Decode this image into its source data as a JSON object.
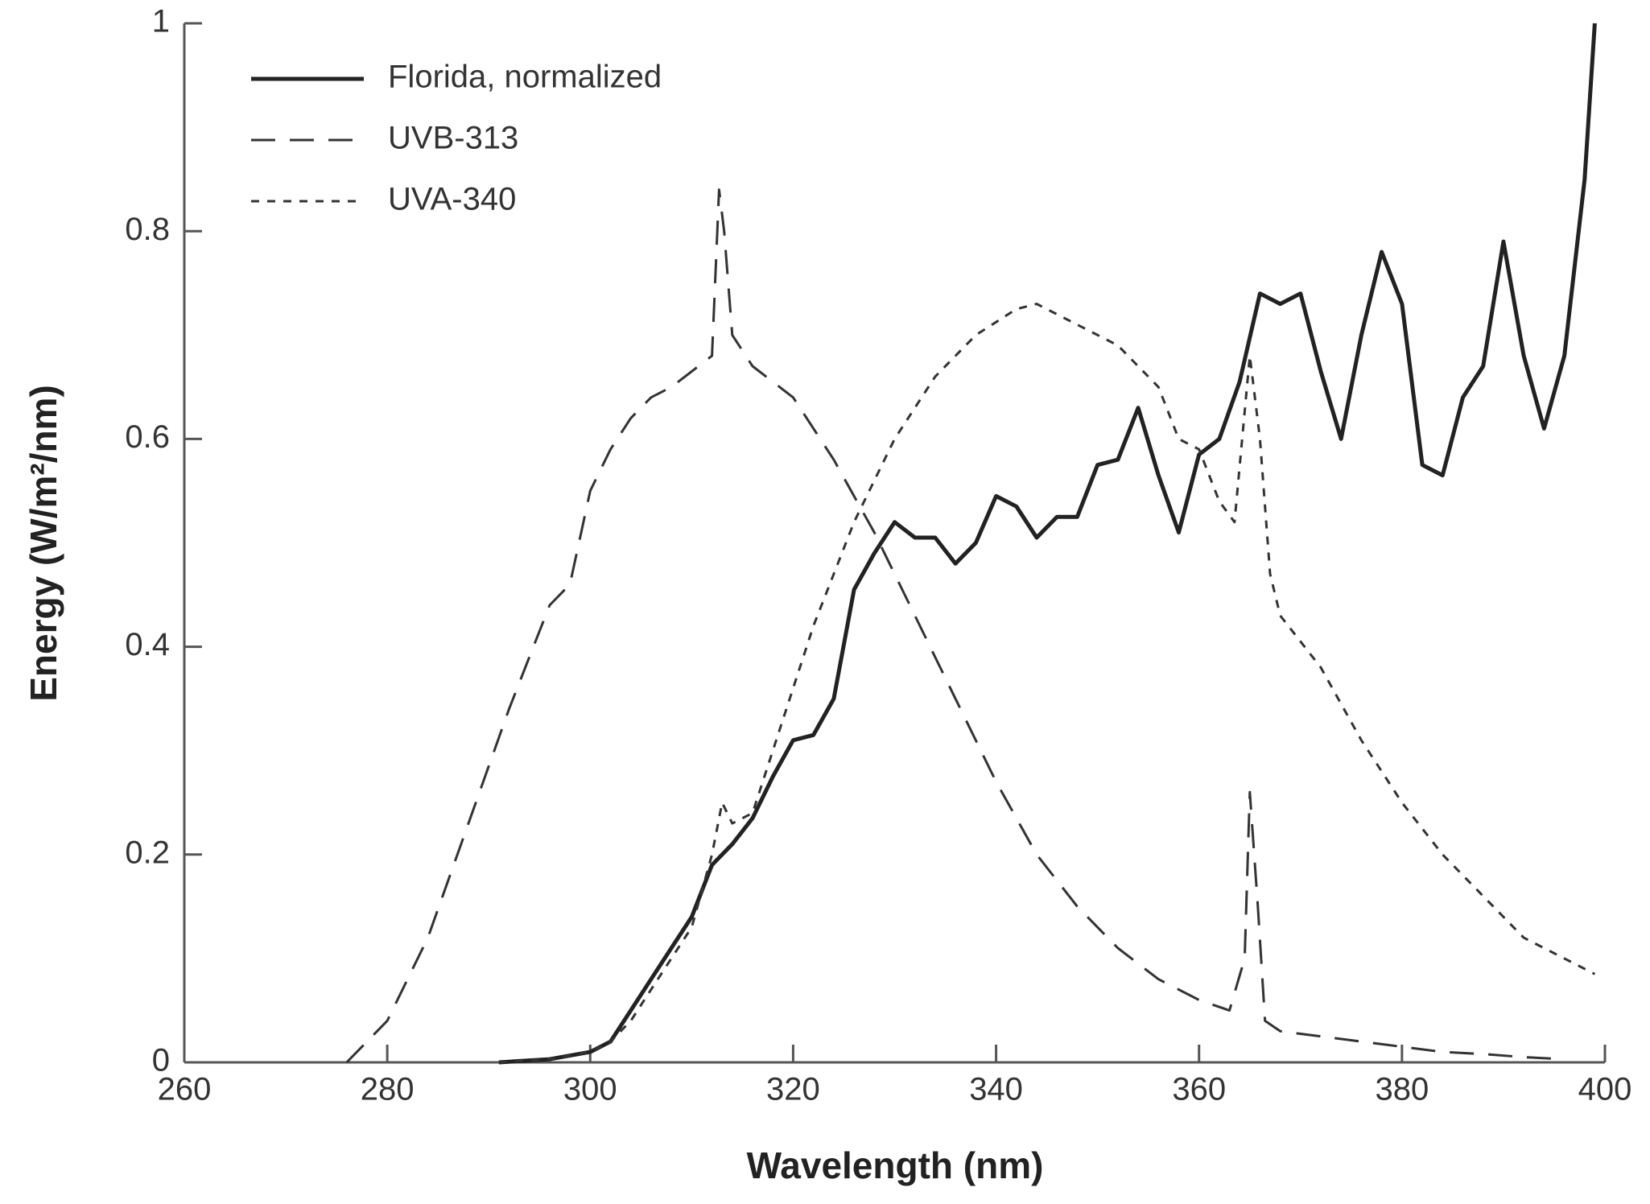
{
  "chart_data": {
    "type": "line",
    "x_label": "Wavelength (nm)",
    "y_label": "Energy (W/m²/nm)",
    "xlim": [
      260,
      400
    ],
    "xticks": [
      260,
      280,
      300,
      320,
      340,
      360,
      380,
      400
    ],
    "ylim": [
      0,
      1
    ],
    "yticks": [
      0,
      0.2,
      0.4,
      0.6,
      0.8,
      1
    ],
    "legend": "upper left",
    "series": [
      {
        "name": "Florida, normalized",
        "color": "#222222",
        "dash": "solid",
        "x": [
          291,
          296,
          300,
          302,
          304,
          306,
          308,
          310,
          312,
          314,
          316,
          318,
          320,
          322,
          324,
          326,
          328,
          330,
          332,
          334,
          336,
          338,
          340,
          342,
          344,
          346,
          348,
          350,
          352,
          354,
          356,
          358,
          360,
          362,
          364,
          366,
          368,
          370,
          372,
          374,
          376,
          378,
          380,
          382,
          384,
          386,
          388,
          390,
          392,
          394,
          396,
          398,
          399
        ],
        "values": [
          0,
          0.003,
          0.01,
          0.02,
          0.05,
          0.08,
          0.11,
          0.14,
          0.19,
          0.21,
          0.235,
          0.275,
          0.31,
          0.315,
          0.35,
          0.455,
          0.49,
          0.52,
          0.505,
          0.505,
          0.48,
          0.5,
          0.545,
          0.535,
          0.505,
          0.525,
          0.525,
          0.575,
          0.58,
          0.63,
          0.565,
          0.51,
          0.585,
          0.6,
          0.655,
          0.74,
          0.73,
          0.74,
          0.665,
          0.6,
          0.7,
          0.78,
          0.73,
          0.575,
          0.565,
          0.64,
          0.67,
          0.79,
          0.68,
          0.61,
          0.68,
          0.85,
          1
        ]
      },
      {
        "name": "UVB-313",
        "color": "#333333",
        "dash": "long",
        "x": [
          276,
          280,
          284,
          288,
          292,
          296,
          298,
          300,
          302,
          304,
          306,
          308,
          310,
          312,
          312.7,
          313.2,
          314,
          316,
          320,
          324,
          328,
          332,
          336,
          340,
          344,
          348,
          352,
          356,
          360,
          363,
          364.5,
          365,
          365.8,
          366.5,
          368,
          372,
          376,
          380,
          384,
          388,
          392,
          396
        ],
        "values": [
          0,
          0.04,
          0.12,
          0.23,
          0.34,
          0.44,
          0.46,
          0.55,
          0.59,
          0.62,
          0.64,
          0.65,
          0.665,
          0.68,
          0.84,
          0.8,
          0.7,
          0.67,
          0.64,
          0.58,
          0.51,
          0.43,
          0.35,
          0.27,
          0.2,
          0.15,
          0.11,
          0.08,
          0.06,
          0.05,
          0.1,
          0.26,
          0.15,
          0.04,
          0.03,
          0.025,
          0.02,
          0.015,
          0.01,
          0.008,
          0.005,
          0.003
        ]
      },
      {
        "name": "UVA-340",
        "color": "#333333",
        "dash": "short",
        "x": [
          291,
          296,
          300,
          302,
          304,
          306,
          308,
          310,
          312,
          313,
          314,
          316,
          318,
          320,
          322,
          324,
          326,
          328,
          330,
          334,
          338,
          342,
          344,
          348,
          352,
          356,
          358,
          360,
          362,
          363.5,
          365,
          366,
          367,
          368,
          372,
          376,
          380,
          384,
          388,
          392,
          396,
          399
        ],
        "values": [
          0,
          0.003,
          0.01,
          0.02,
          0.04,
          0.07,
          0.1,
          0.13,
          0.2,
          0.25,
          0.23,
          0.24,
          0.3,
          0.36,
          0.42,
          0.47,
          0.52,
          0.56,
          0.6,
          0.66,
          0.7,
          0.725,
          0.73,
          0.71,
          0.69,
          0.65,
          0.6,
          0.59,
          0.54,
          0.52,
          0.68,
          0.6,
          0.47,
          0.43,
          0.38,
          0.31,
          0.25,
          0.2,
          0.16,
          0.12,
          0.1,
          0.085
        ]
      }
    ]
  }
}
